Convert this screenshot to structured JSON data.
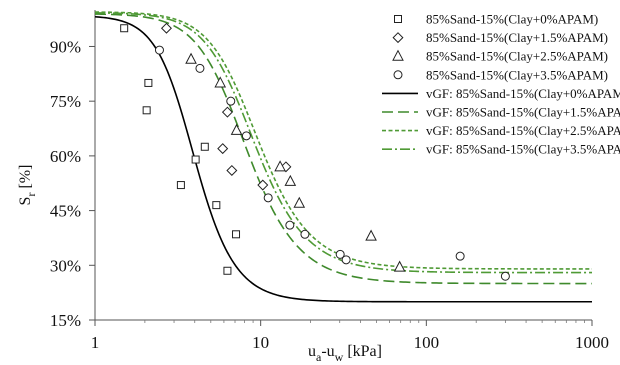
{
  "chart_data": {
    "type": "scatter",
    "title": "",
    "x_scale": "log",
    "xlim": [
      1,
      1000
    ],
    "ylim": [
      15,
      100
    ],
    "grid": false,
    "legend_position": "top-right",
    "xlabel": {
      "main": "u",
      "sub_a": "a",
      "dash": "-u",
      "sub_w": "w",
      "unit": " [kPa]"
    },
    "ylabel": {
      "main": "S",
      "sub": "r",
      "unit": " [%]"
    },
    "x_ticks": [
      {
        "value": 1,
        "label": "1"
      },
      {
        "value": 10,
        "label": "10"
      },
      {
        "value": 100,
        "label": "100"
      },
      {
        "value": 1000,
        "label": "1000"
      }
    ],
    "y_ticks": [
      {
        "value": 15,
        "label": "15%"
      },
      {
        "value": 30,
        "label": "30%"
      },
      {
        "value": 45,
        "label": "45%"
      },
      {
        "value": 60,
        "label": "60%"
      },
      {
        "value": 75,
        "label": "75%"
      },
      {
        "value": 90,
        "label": "90%"
      }
    ],
    "series": [
      {
        "name": "85%Sand-15%(Clay+0%APAM)",
        "kind": "points",
        "marker": "square",
        "points": [
          [
            1.5,
            95
          ],
          [
            2.05,
            72.5
          ],
          [
            2.1,
            80
          ],
          [
            3.3,
            52
          ],
          [
            4.05,
            59
          ],
          [
            4.6,
            62.5
          ],
          [
            5.4,
            46.5
          ],
          [
            6.3,
            28.5
          ],
          [
            7.1,
            38.5
          ]
        ]
      },
      {
        "name": "85%Sand-15%(Clay+1.5%APAM)",
        "kind": "points",
        "marker": "diamond",
        "points": [
          [
            2.7,
            95
          ],
          [
            5.9,
            62
          ],
          [
            6.3,
            72
          ],
          [
            6.7,
            56
          ],
          [
            10.3,
            52
          ],
          [
            14.2,
            57
          ]
        ]
      },
      {
        "name": "85%Sand-15%(Clay+2.5%APAM)",
        "kind": "points",
        "marker": "triangle",
        "points": [
          [
            3.8,
            86.5
          ],
          [
            5.7,
            80
          ],
          [
            7.15,
            67
          ],
          [
            13.1,
            57
          ],
          [
            15.1,
            53
          ],
          [
            17.1,
            47
          ],
          [
            46.4,
            38
          ],
          [
            69,
            29.5
          ]
        ]
      },
      {
        "name": "85%Sand-15%(Clay+3.5%APAM)",
        "kind": "points",
        "marker": "circle",
        "points": [
          [
            2.45,
            89
          ],
          [
            4.3,
            84
          ],
          [
            6.6,
            75
          ],
          [
            8.2,
            65.5
          ],
          [
            11.1,
            48.5
          ],
          [
            15,
            41
          ],
          [
            18.5,
            38.5
          ],
          [
            30.2,
            33
          ],
          [
            32.8,
            31.5
          ],
          [
            160,
            32.5
          ],
          [
            300,
            27
          ]
        ]
      },
      {
        "name": "vGF: 85%Sand-15%(Clay+0%APAM)",
        "kind": "line",
        "style": "solid",
        "color": "#000000",
        "params": {
          "theta_r": 20,
          "theta_s": 98.5,
          "alpha": 0.278,
          "n": 4.0
        }
      },
      {
        "name": "vGF: 85%Sand-15%(Clay+1.5%APAM)",
        "kind": "line",
        "style": "long-dash",
        "color": "#3f8a2c",
        "params": {
          "theta_r": 25,
          "theta_s": 99,
          "alpha": 0.145,
          "n": 3.2
        }
      },
      {
        "name": "vGF: 85%Sand-15%(Clay+2.5%APAM)",
        "kind": "line",
        "style": "short-dash",
        "color": "#4f9a35",
        "params": {
          "theta_r": 29,
          "theta_s": 99.5,
          "alpha": 0.123,
          "n": 3.2
        }
      },
      {
        "name": "vGF: 85%Sand-15%(Clay+3.5%APAM)",
        "kind": "line",
        "style": "dash-dot",
        "color": "#4f9a35",
        "params": {
          "theta_r": 28,
          "theta_s": 99.3,
          "alpha": 0.13,
          "n": 3.2
        }
      }
    ]
  }
}
